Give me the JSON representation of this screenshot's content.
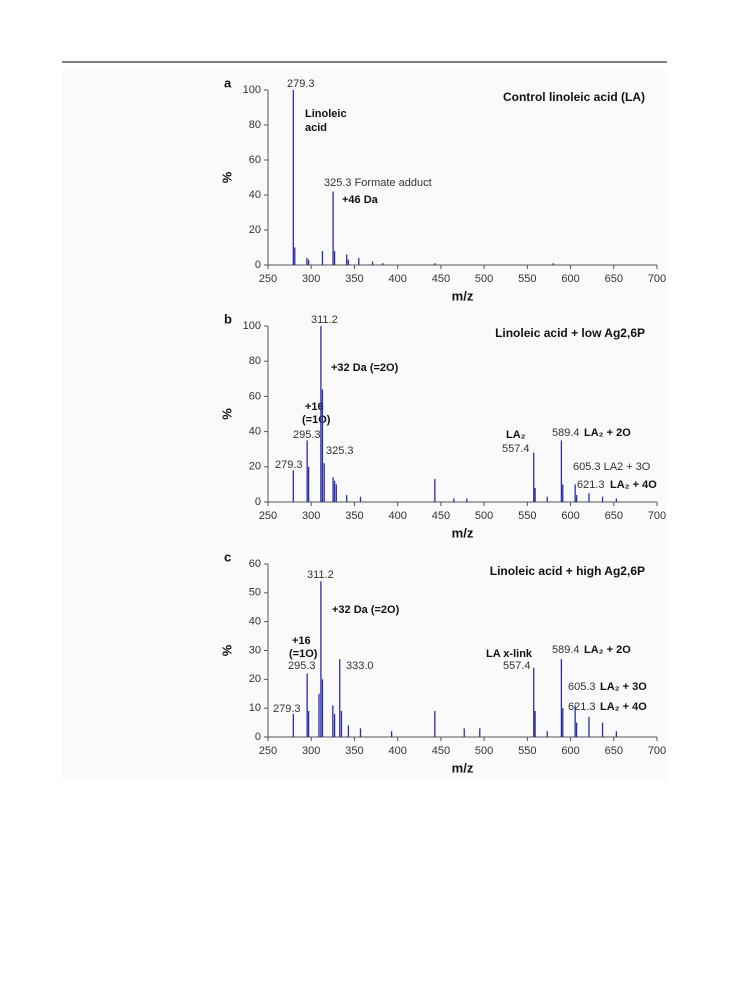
{
  "chart_data": [
    {
      "type": "spectrum",
      "panel_label": "a",
      "title": "Control linoleic acid (LA)",
      "xlabel": "m/z",
      "ylabel": "%",
      "color": "#2b2ba8",
      "xlim": [
        250,
        700
      ],
      "ylim": [
        0,
        100
      ],
      "xticks": [
        250,
        300,
        350,
        400,
        450,
        500,
        550,
        600,
        650,
        700
      ],
      "yticks": [
        0,
        20,
        40,
        60,
        80,
        100
      ],
      "x": [
        279.3,
        281,
        295,
        297,
        313,
        325.3,
        327,
        341,
        343,
        355,
        371,
        383,
        443,
        580
      ],
      "values": [
        100,
        10,
        4,
        3,
        8,
        42,
        8,
        6,
        3,
        4,
        2,
        1,
        1,
        1
      ],
      "annotations": [
        "279.3",
        "Linoleic",
        "acid",
        "325.3 Formate adduct",
        "+46 Da"
      ]
    },
    {
      "type": "spectrum",
      "panel_label": "b",
      "title": "Linoleic acid + low Ag2,6P",
      "xlabel": "m/z",
      "ylabel": "%",
      "color": "#2b2ba8",
      "xlim": [
        250,
        700
      ],
      "ylim": [
        0,
        100
      ],
      "xticks": [
        250,
        300,
        350,
        400,
        450,
        500,
        550,
        600,
        650,
        700
      ],
      "yticks": [
        0,
        20,
        40,
        60,
        80,
        100
      ],
      "x": [
        279.3,
        295.3,
        297,
        311.2,
        313,
        315,
        325.3,
        327,
        329,
        341,
        357,
        443,
        465,
        480,
        557.4,
        559,
        573,
        589.4,
        591,
        605.3,
        607,
        621.3,
        637,
        653
      ],
      "values": [
        18,
        35,
        20,
        100,
        64,
        22,
        14,
        12,
        10,
        4,
        3,
        13,
        2,
        2,
        28,
        8,
        3,
        35,
        10,
        10,
        4,
        5,
        3,
        2
      ],
      "annotations": [
        "311.2",
        "+32 Da (=2O)",
        "+16",
        "(=1O)",
        "295.3",
        "279.3",
        "325.3",
        "LA₂",
        "557.4",
        "589.4",
        "LA₂ + 2O",
        "605.3 LA2 + 3O",
        "621.3",
        "LA₂ + 4O"
      ]
    },
    {
      "type": "spectrum",
      "panel_label": "c",
      "title": "Linoleic acid + high Ag2,6P",
      "xlabel": "m/z",
      "ylabel": "%",
      "color": "#2b2ba8",
      "xlim": [
        250,
        700
      ],
      "ylim": [
        0,
        60
      ],
      "xticks": [
        250,
        300,
        350,
        400,
        450,
        500,
        550,
        600,
        650,
        700
      ],
      "yticks": [
        0,
        10,
        20,
        30,
        40,
        50,
        60
      ],
      "x": [
        279.3,
        295.3,
        297,
        309,
        311.2,
        313,
        325,
        327,
        333.0,
        335,
        343,
        357,
        393,
        443,
        477,
        495,
        557.4,
        559,
        573,
        589.4,
        591,
        605.3,
        607,
        621.3,
        637,
        653
      ],
      "values": [
        8,
        22,
        9,
        15,
        54,
        20,
        11,
        8,
        27,
        9,
        4,
        3,
        2,
        9,
        3,
        3,
        24,
        9,
        2,
        27,
        10,
        11,
        5,
        7,
        5,
        2
      ],
      "annotations": [
        "311.2",
        "+32 Da (=2O)",
        "+16",
        "(=1O)",
        "295.3",
        "279.3",
        "333.0",
        "LA x-link",
        "557.4",
        "589.4",
        "LA₂ + 2O",
        "605.3",
        "LA₂ + 3O",
        "621.3",
        "LA₂ + 4O"
      ]
    }
  ]
}
